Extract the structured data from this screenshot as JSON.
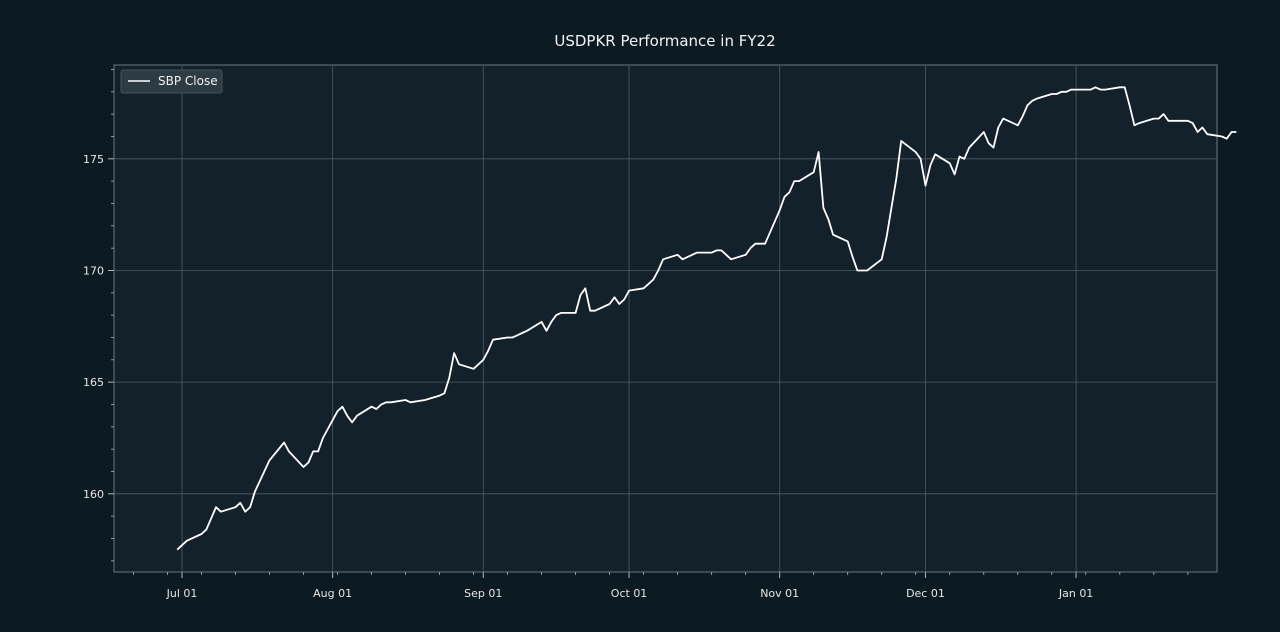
{
  "chart_data": {
    "type": "line",
    "title": "USDPKR Performance in FY22",
    "xlabel": "",
    "ylabel": "",
    "x_tick_labels": [
      {
        "date": "2021-07-01",
        "label": "Jul 01"
      },
      {
        "date": "2021-08-01",
        "label": "Aug 01"
      },
      {
        "date": "2021-09-01",
        "label": "Sep 01"
      },
      {
        "date": "2021-10-01",
        "label": "Oct 01"
      },
      {
        "date": "2021-11-01",
        "label": "Nov 01"
      },
      {
        "date": "2021-12-01",
        "label": "Dec 01"
      },
      {
        "date": "2022-01-01",
        "label": "Jan 01"
      }
    ],
    "y_ticks": [
      160,
      165,
      170,
      175
    ],
    "xlim": [
      "2021-06-17",
      "2022-01-30"
    ],
    "ylim": [
      156.5,
      179.2
    ],
    "grid": true,
    "legend": "top-left",
    "colors": {
      "background": "#0c1b22",
      "plot_background": "#13212a",
      "line": "#ffffff",
      "grid": "#4e5d64",
      "text": "#e6e6e6"
    },
    "series": [
      {
        "name": "SBP Close",
        "points": [
          [
            "2021-06-30",
            157.5
          ],
          [
            "2021-07-01",
            157.7
          ],
          [
            "2021-07-02",
            157.9
          ],
          [
            "2021-07-05",
            158.2
          ],
          [
            "2021-07-06",
            158.4
          ],
          [
            "2021-07-07",
            158.9
          ],
          [
            "2021-07-08",
            159.4
          ],
          [
            "2021-07-09",
            159.2
          ],
          [
            "2021-07-12",
            159.4
          ],
          [
            "2021-07-13",
            159.6
          ],
          [
            "2021-07-14",
            159.2
          ],
          [
            "2021-07-15",
            159.4
          ],
          [
            "2021-07-16",
            160.1
          ],
          [
            "2021-07-19",
            161.5
          ],
          [
            "2021-07-22",
            162.3
          ],
          [
            "2021-07-23",
            161.9
          ],
          [
            "2021-07-26",
            161.2
          ],
          [
            "2021-07-27",
            161.4
          ],
          [
            "2021-07-28",
            161.9
          ],
          [
            "2021-07-29",
            161.9
          ],
          [
            "2021-07-30",
            162.5
          ],
          [
            "2021-08-02",
            163.7
          ],
          [
            "2021-08-03",
            163.9
          ],
          [
            "2021-08-04",
            163.5
          ],
          [
            "2021-08-05",
            163.2
          ],
          [
            "2021-08-06",
            163.5
          ],
          [
            "2021-08-09",
            163.9
          ],
          [
            "2021-08-10",
            163.8
          ],
          [
            "2021-08-11",
            164.0
          ],
          [
            "2021-08-12",
            164.1
          ],
          [
            "2021-08-13",
            164.1
          ],
          [
            "2021-08-16",
            164.2
          ],
          [
            "2021-08-17",
            164.1
          ],
          [
            "2021-08-20",
            164.2
          ],
          [
            "2021-08-23",
            164.4
          ],
          [
            "2021-08-24",
            164.5
          ],
          [
            "2021-08-25",
            165.2
          ],
          [
            "2021-08-26",
            166.3
          ],
          [
            "2021-08-27",
            165.8
          ],
          [
            "2021-08-30",
            165.6
          ],
          [
            "2021-09-01",
            166.0
          ],
          [
            "2021-09-02",
            166.4
          ],
          [
            "2021-09-03",
            166.9
          ],
          [
            "2021-09-06",
            167.0
          ],
          [
            "2021-09-07",
            167.0
          ],
          [
            "2021-09-08",
            167.1
          ],
          [
            "2021-09-09",
            167.2
          ],
          [
            "2021-09-10",
            167.3
          ],
          [
            "2021-09-13",
            167.7
          ],
          [
            "2021-09-14",
            167.3
          ],
          [
            "2021-09-15",
            167.7
          ],
          [
            "2021-09-16",
            168.0
          ],
          [
            "2021-09-17",
            168.1
          ],
          [
            "2021-09-20",
            168.1
          ],
          [
            "2021-09-21",
            168.9
          ],
          [
            "2021-09-22",
            169.2
          ],
          [
            "2021-09-23",
            168.2
          ],
          [
            "2021-09-24",
            168.2
          ],
          [
            "2021-09-27",
            168.5
          ],
          [
            "2021-09-28",
            168.8
          ],
          [
            "2021-09-29",
            168.5
          ],
          [
            "2021-09-30",
            168.7
          ],
          [
            "2021-10-01",
            169.1
          ],
          [
            "2021-10-04",
            169.2
          ],
          [
            "2021-10-05",
            169.4
          ],
          [
            "2021-10-06",
            169.6
          ],
          [
            "2021-10-07",
            170.0
          ],
          [
            "2021-10-08",
            170.5
          ],
          [
            "2021-10-11",
            170.7
          ],
          [
            "2021-10-12",
            170.5
          ],
          [
            "2021-10-13",
            170.6
          ],
          [
            "2021-10-14",
            170.7
          ],
          [
            "2021-10-15",
            170.8
          ],
          [
            "2021-10-18",
            170.8
          ],
          [
            "2021-10-19",
            170.9
          ],
          [
            "2021-10-20",
            170.9
          ],
          [
            "2021-10-21",
            170.7
          ],
          [
            "2021-10-22",
            170.5
          ],
          [
            "2021-10-25",
            170.7
          ],
          [
            "2021-10-26",
            171.0
          ],
          [
            "2021-10-27",
            171.2
          ],
          [
            "2021-10-28",
            171.2
          ],
          [
            "2021-10-29",
            171.2
          ],
          [
            "2021-11-01",
            172.7
          ],
          [
            "2021-11-02",
            173.3
          ],
          [
            "2021-11-03",
            173.5
          ],
          [
            "2021-11-04",
            174.0
          ],
          [
            "2021-11-05",
            174.0
          ],
          [
            "2021-11-08",
            174.4
          ],
          [
            "2021-11-09",
            175.3
          ],
          [
            "2021-11-10",
            172.8
          ],
          [
            "2021-11-11",
            172.3
          ],
          [
            "2021-11-12",
            171.6
          ],
          [
            "2021-11-15",
            171.3
          ],
          [
            "2021-11-16",
            170.6
          ],
          [
            "2021-11-17",
            170.0
          ],
          [
            "2021-11-18",
            170.0
          ],
          [
            "2021-11-19",
            170.0
          ],
          [
            "2021-11-22",
            170.5
          ],
          [
            "2021-11-23",
            171.5
          ],
          [
            "2021-11-24",
            172.8
          ],
          [
            "2021-11-25",
            174.1
          ],
          [
            "2021-11-26",
            175.8
          ],
          [
            "2021-11-29",
            175.3
          ],
          [
            "2021-11-30",
            175.0
          ],
          [
            "2021-12-01",
            173.8
          ],
          [
            "2021-12-02",
            174.7
          ],
          [
            "2021-12-03",
            175.2
          ],
          [
            "2021-12-06",
            174.8
          ],
          [
            "2021-12-07",
            174.3
          ],
          [
            "2021-12-08",
            175.1
          ],
          [
            "2021-12-09",
            175.0
          ],
          [
            "2021-12-10",
            175.5
          ],
          [
            "2021-12-13",
            176.2
          ],
          [
            "2021-12-14",
            175.7
          ],
          [
            "2021-12-15",
            175.5
          ],
          [
            "2021-12-16",
            176.4
          ],
          [
            "2021-12-17",
            176.8
          ],
          [
            "2021-12-20",
            176.5
          ],
          [
            "2021-12-21",
            176.9
          ],
          [
            "2021-12-22",
            177.4
          ],
          [
            "2021-12-23",
            177.6
          ],
          [
            "2021-12-24",
            177.7
          ],
          [
            "2021-12-27",
            177.9
          ],
          [
            "2021-12-28",
            177.9
          ],
          [
            "2021-12-29",
            178.0
          ],
          [
            "2021-12-30",
            178.0
          ],
          [
            "2021-12-31",
            178.1
          ],
          [
            "2022-01-03",
            178.1
          ],
          [
            "2022-01-04",
            178.1
          ],
          [
            "2022-01-05",
            178.2
          ],
          [
            "2022-01-06",
            178.1
          ],
          [
            "2022-01-07",
            178.1
          ],
          [
            "2022-01-10",
            178.2
          ],
          [
            "2022-01-11",
            178.2
          ],
          [
            "2022-01-12",
            177.4
          ],
          [
            "2022-01-13",
            176.5
          ],
          [
            "2022-01-14",
            176.6
          ],
          [
            "2022-01-17",
            176.8
          ],
          [
            "2022-01-18",
            176.8
          ],
          [
            "2022-01-19",
            177.0
          ],
          [
            "2022-01-20",
            176.7
          ],
          [
            "2022-01-21",
            176.7
          ],
          [
            "2022-01-24",
            176.7
          ],
          [
            "2022-01-25",
            176.6
          ],
          [
            "2022-01-26",
            176.2
          ],
          [
            "2022-01-27",
            176.4
          ],
          [
            "2022-01-28",
            176.1
          ],
          [
            "2022-01-31",
            176.0
          ],
          [
            "2022-02-01",
            175.9
          ],
          [
            "2022-02-02",
            176.2
          ],
          [
            "2022-02-03",
            176.2
          ]
        ]
      }
    ]
  }
}
